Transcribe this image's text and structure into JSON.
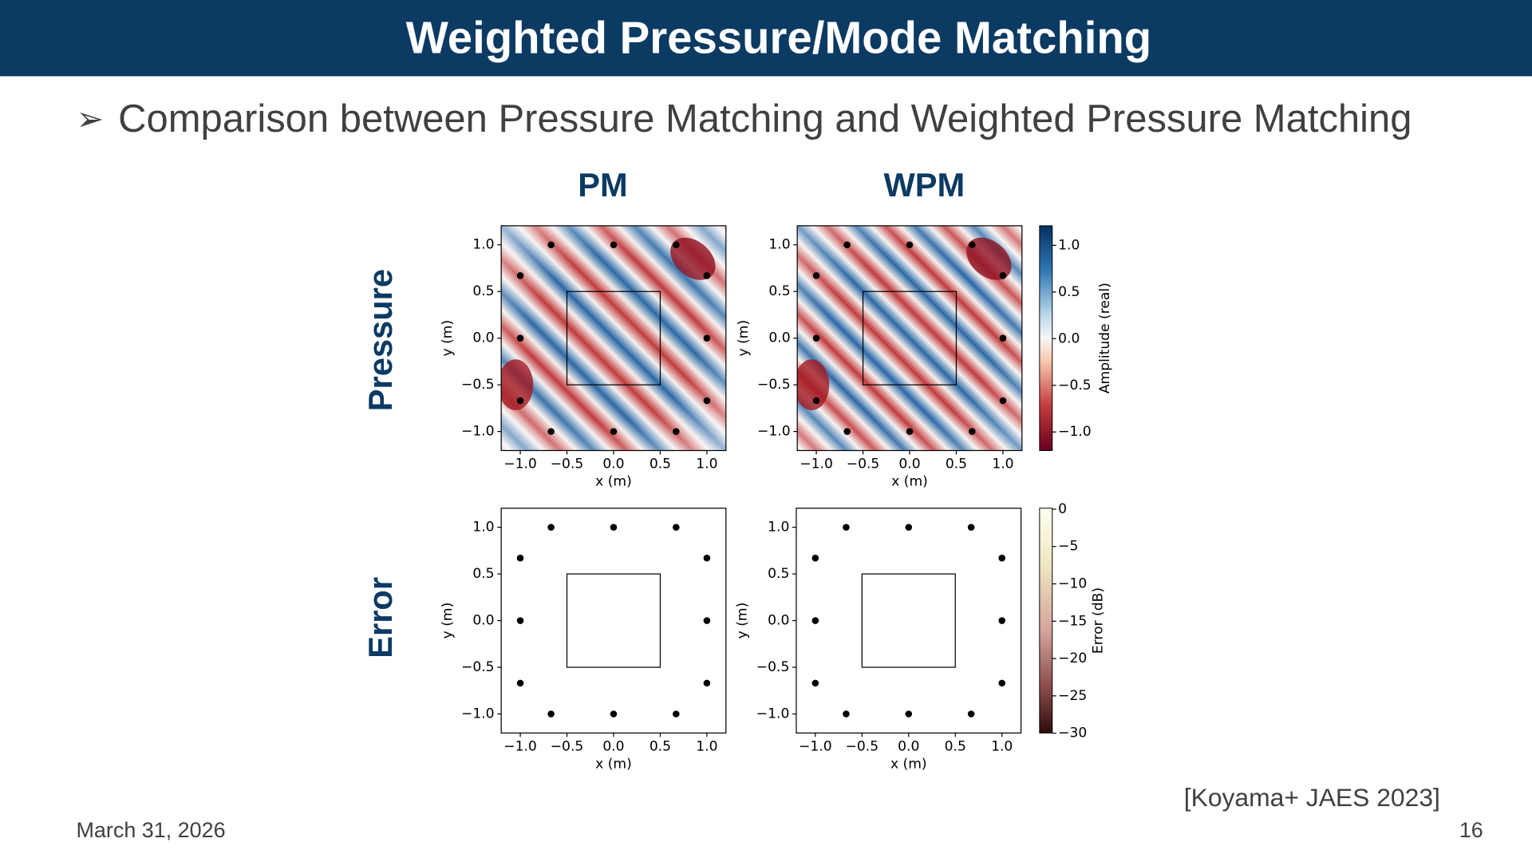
{
  "header": {
    "title": "Weighted Pressure/Mode Matching"
  },
  "bullet": "Comparison between Pressure Matching and Weighted Pressure Matching",
  "columns": [
    "PM",
    "WPM"
  ],
  "rows": [
    "Pressure",
    "Error"
  ],
  "axes": {
    "x_label": "x (m)",
    "y_label": "y (m)",
    "ticks": [
      "−1.0",
      "−0.5",
      "0.0",
      "0.5",
      "1.0"
    ]
  },
  "colorbars": [
    {
      "label": "Amplitude (real)",
      "ticks": [
        "1.0",
        "0.5",
        "0.0",
        "−0.5",
        "−1.0"
      ]
    },
    {
      "label": "Error (dB)",
      "ticks": [
        "0",
        "−5",
        "−10",
        "−15",
        "−20",
        "−25",
        "−30"
      ]
    }
  ],
  "citation": "[Koyama+ JAES 2023]",
  "footer": {
    "date": "March 31, 2026",
    "page": "16"
  }
}
